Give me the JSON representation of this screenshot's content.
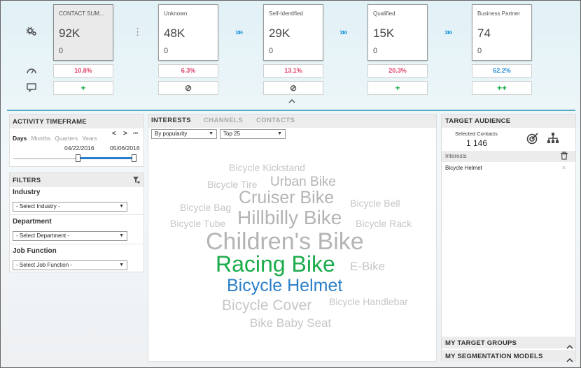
{
  "funnel": {
    "cards": [
      {
        "label": "CONTACT SUM...",
        "count": "92K",
        "sub": "0",
        "pct": "10.8%",
        "pct_color": "#e0406a",
        "action": "+",
        "action_color": "#1aab4a"
      },
      {
        "label": "Unknown",
        "count": "48K",
        "sub": "0",
        "pct": "6.3%",
        "pct_color": "#e0406a",
        "action": "⊘",
        "action_color": "#555555"
      },
      {
        "label": "Self-Identified",
        "count": "29K",
        "sub": "0",
        "pct": "13.1%",
        "pct_color": "#e0406a",
        "action": "⊘",
        "action_color": "#555555"
      },
      {
        "label": "Qualified",
        "count": "15K",
        "sub": "0",
        "pct": "20.3%",
        "pct_color": "#e0406a",
        "action": "+",
        "action_color": "#1aab4a"
      },
      {
        "label": "Business Partner",
        "count": "74",
        "sub": "0",
        "pct": "62.2%",
        "pct_color": "#2b8fd6",
        "action": "++",
        "action_color": "#1aab4a"
      }
    ],
    "arrow_glyph": "»»",
    "kebab_glyph": "⋮",
    "collapse_glyph": "︿"
  },
  "activity": {
    "title": "ACTIVITY TIMEFRAME",
    "tabs": [
      "Days",
      "Months",
      "Quarters",
      "Years"
    ],
    "active_tab": "Days",
    "prev_glyph": "<",
    "next_glyph": ">",
    "more_glyph": "•••",
    "date_from": "04/22/2016",
    "date_to": "05/06/2016",
    "slider_from_fraction": 0.52,
    "slider_to_fraction": 1.0
  },
  "filters": {
    "title": "FILTERS",
    "groups": [
      {
        "label": "Industry",
        "select": "- Select Industry -"
      },
      {
        "label": "Department",
        "select": "- Select Department -"
      },
      {
        "label": "Job Function",
        "select": "- Select Job Function -"
      }
    ]
  },
  "interests": {
    "tabs": [
      "INTERESTS",
      "CHANNELS",
      "CONTACTS"
    ],
    "active_tab": "INTERESTS",
    "sort_select": "By popularity",
    "top_select": "Top 25",
    "words": [
      {
        "text": "Bicycle Kickstand",
        "color": "gray"
      },
      {
        "text": "Bicycle Tire",
        "color": "gray"
      },
      {
        "text": "Urban Bike",
        "color": "mid"
      },
      {
        "text": "Bicycle Bag",
        "color": "gray"
      },
      {
        "text": "Cruiser Bike",
        "color": "mid"
      },
      {
        "text": "Bicycle Bell",
        "color": "gray"
      },
      {
        "text": "Bicycle Tube",
        "color": "gray"
      },
      {
        "text": "Hillbilly Bike",
        "color": "mid"
      },
      {
        "text": "Bicycle Rack",
        "color": "gray"
      },
      {
        "text": "Children's Bike",
        "color": "mid"
      },
      {
        "text": "Racing Bike",
        "color": "green"
      },
      {
        "text": "E-Bike",
        "color": "gray"
      },
      {
        "text": "Bicycle Helmet",
        "color": "blue"
      },
      {
        "text": "Bicycle Cover",
        "color": "gray"
      },
      {
        "text": "Bicycle Handlebar",
        "color": "gray"
      },
      {
        "text": "Bike Baby Seat",
        "color": "gray"
      }
    ]
  },
  "audience": {
    "title": "TARGET AUDIENCE",
    "selected_label": "Selected Contacts",
    "selected_value": "1 146",
    "section_label": "Interests",
    "items": [
      {
        "text": "Bicycle Helmet",
        "remove": "✕"
      }
    ],
    "bottom_sections": [
      "MY TARGET GROUPS",
      "MY SEGMENTATION MODELS"
    ]
  },
  "icons": {
    "settings": "gear-icon",
    "speedometer": "gauge-icon",
    "comment": "chat-icon",
    "filter": "filter-add-icon",
    "target": "target-icon",
    "hierarchy": "hierarchy-icon",
    "trash": "trash-icon"
  }
}
